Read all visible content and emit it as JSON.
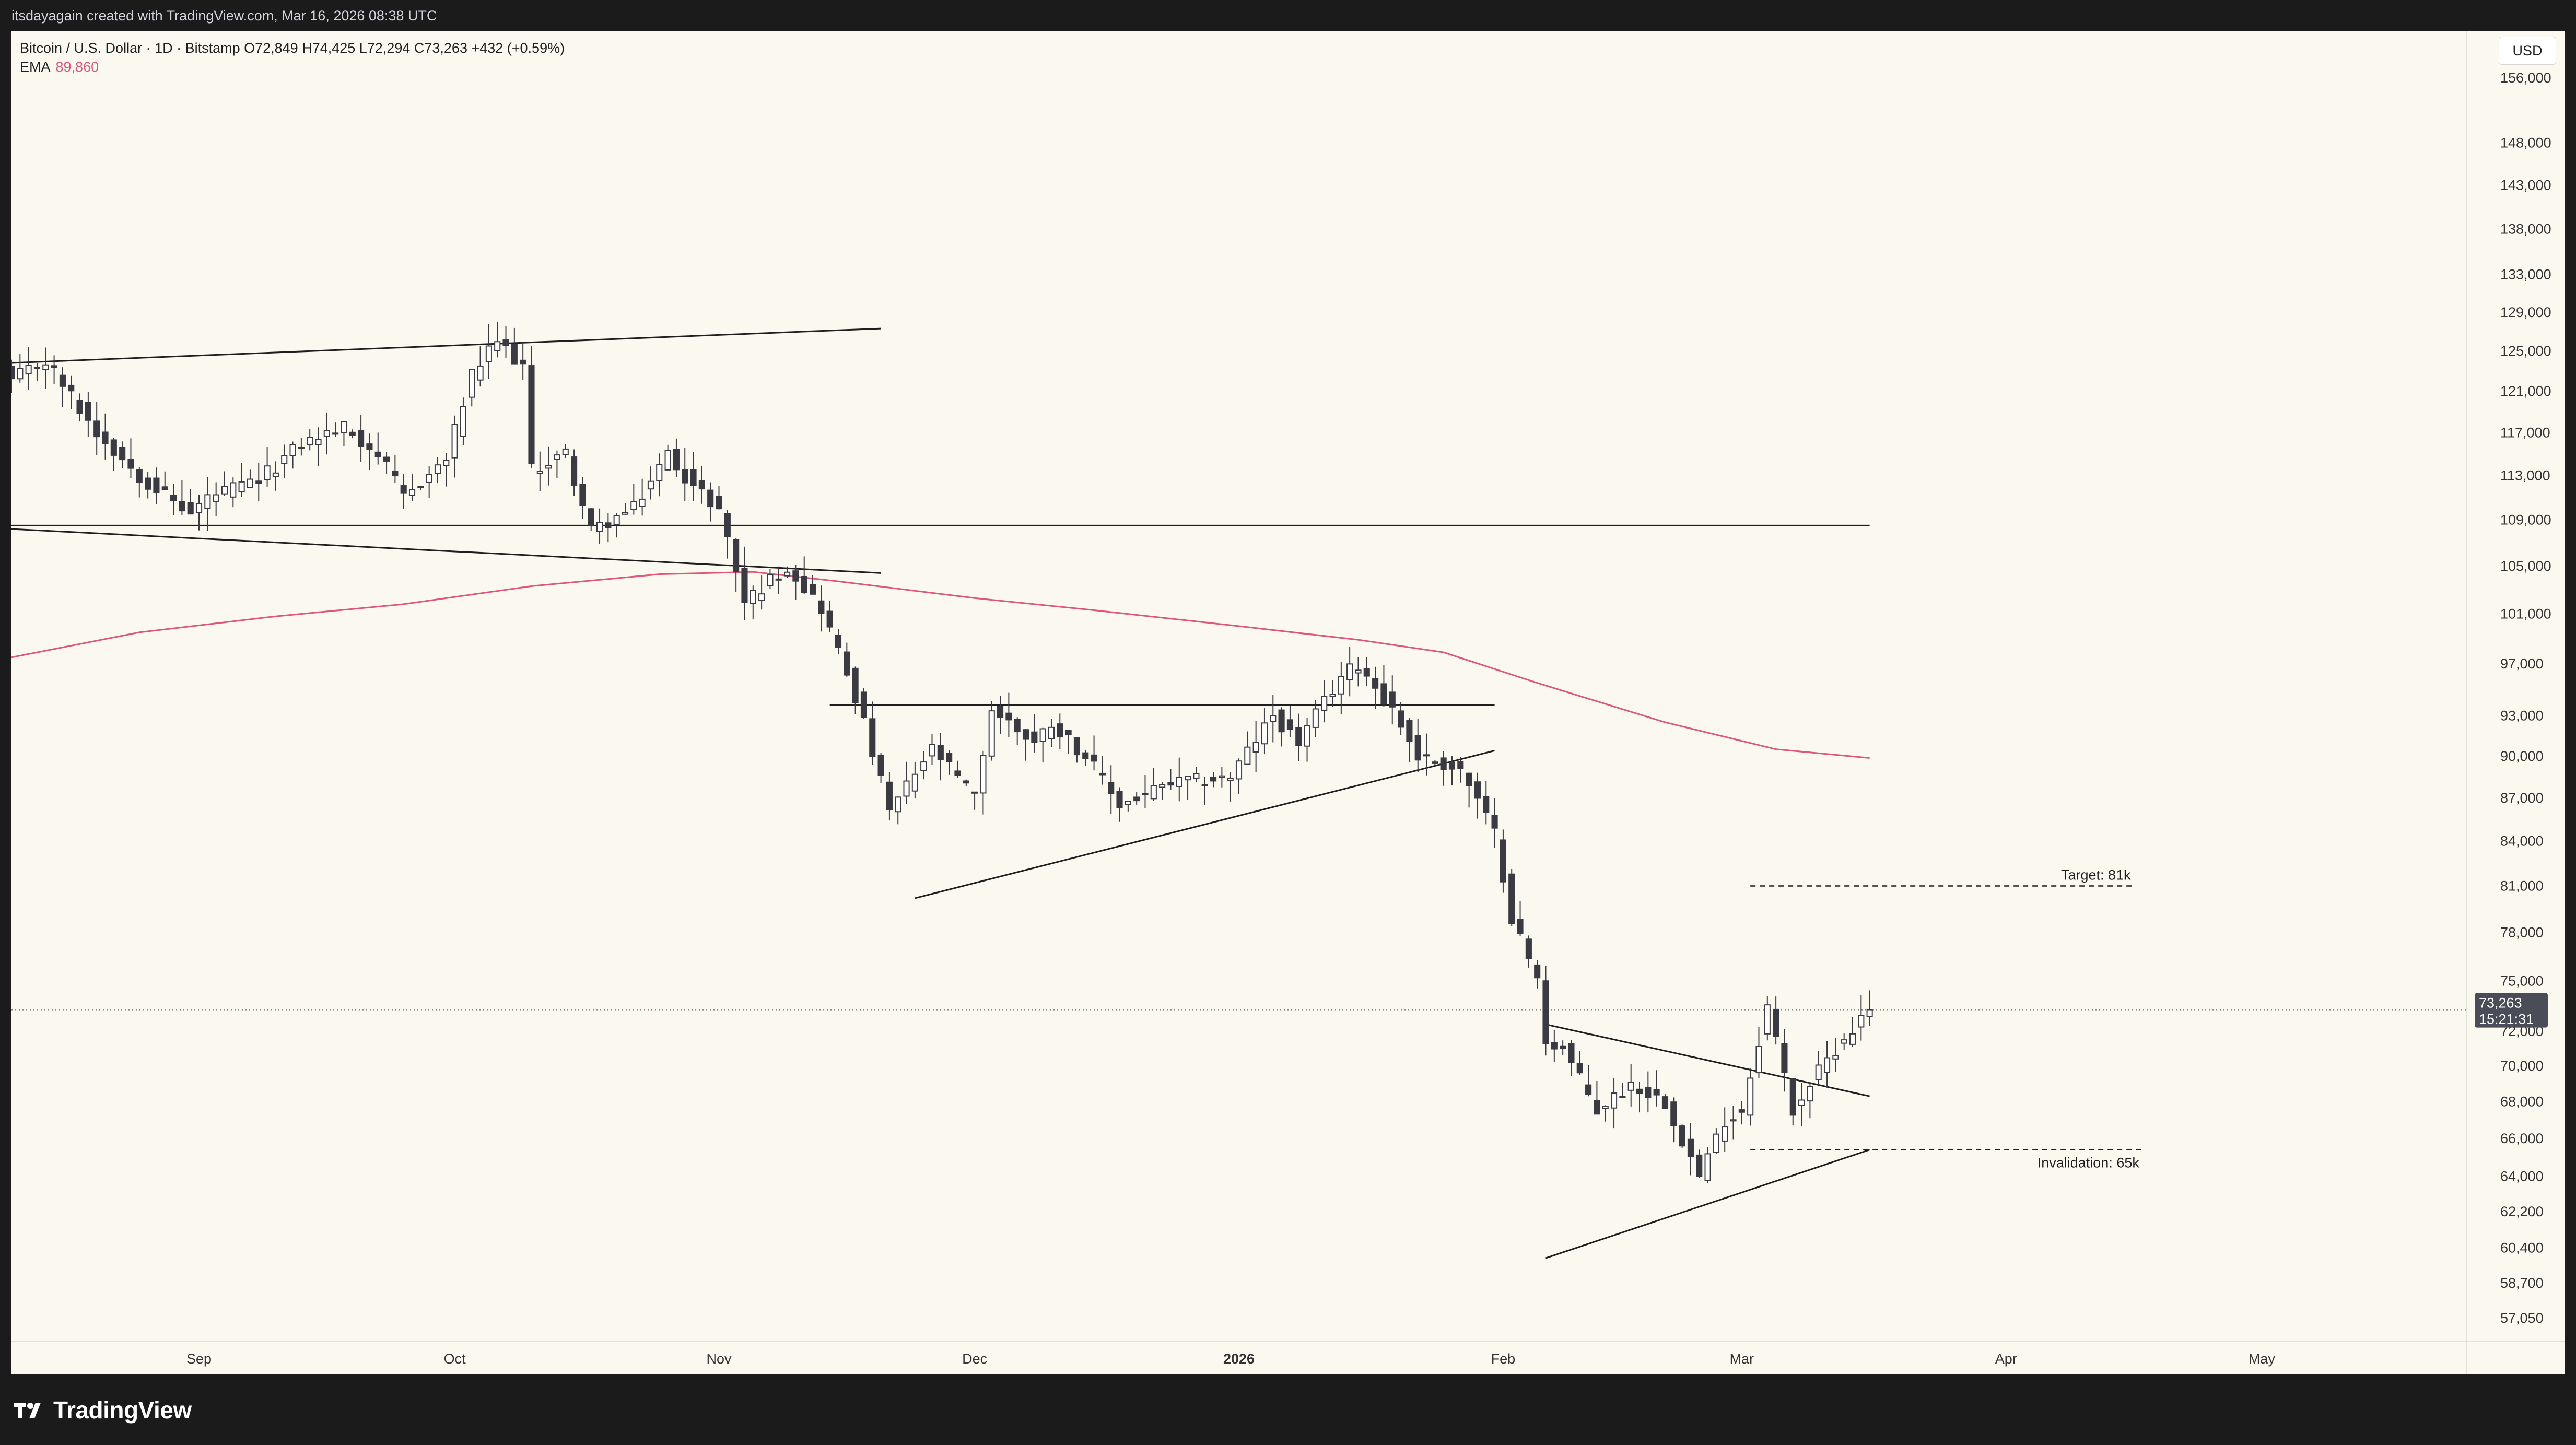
{
  "header": {
    "attribution": "itsdayagain created with TradingView.com, Mar 16, 2026 08:38 UTC"
  },
  "legend": {
    "symbol_line": "Bitcoin / U.S. Dollar · 1D · Bitstamp  O72,849  H74,425  L72,294  C73,263  +432 (+0.59%)",
    "ema_label": "EMA",
    "ema_value": "89,860"
  },
  "currency_button": "USD",
  "price_badge": {
    "price": "73,263",
    "countdown": "15:21:31"
  },
  "footer": {
    "brand": "TradingView"
  },
  "colors": {
    "chart_bg": "#faf8ef",
    "frame_bg": "#1b1b1b",
    "candle_up": "#ffffff",
    "candle_down": "#3a3a42",
    "candle_outline": "#3a3a42",
    "ema": "#e0557a",
    "badge": "#4a4d58"
  },
  "chart_data": {
    "type": "candlestick",
    "symbol": "Bitcoin / U.S. Dollar",
    "interval": "1D",
    "exchange": "Bitstamp",
    "y_scale": "log",
    "ylim": [
      56000,
      162000
    ],
    "y_ticks": [
      "156,000",
      "148,000",
      "143,000",
      "138,000",
      "133,000",
      "129,000",
      "125,000",
      "121,000",
      "117,000",
      "113,000",
      "109,000",
      "105,000",
      "101,000",
      "97,000",
      "93,000",
      "90,000",
      "87,000",
      "84,000",
      "81,000",
      "78,000",
      "75,000",
      "72,000",
      "70,000",
      "68,000",
      "66,000",
      "64,000",
      "62,200",
      "60,400",
      "58,700",
      "57,050"
    ],
    "x_ticks": [
      {
        "label": "Sep",
        "date": "2025-09-01",
        "bold": false
      },
      {
        "label": "Oct",
        "date": "2025-10-01",
        "bold": false
      },
      {
        "label": "Nov",
        "date": "2025-11-01",
        "bold": false
      },
      {
        "label": "Dec",
        "date": "2025-12-01",
        "bold": false
      },
      {
        "label": "2026",
        "date": "2026-01-01",
        "bold": true
      },
      {
        "label": "Feb",
        "date": "2026-02-01",
        "bold": false
      },
      {
        "label": "Mar",
        "date": "2026-03-01",
        "bold": false
      },
      {
        "label": "Apr",
        "date": "2026-04-01",
        "bold": false
      },
      {
        "label": "May",
        "date": "2026-05-01",
        "bold": false
      }
    ],
    "x_range": [
      "2025-08-10",
      "2026-05-25"
    ],
    "ohlc_anchors": [
      [
        "2025-08-10",
        118500,
        122000
      ],
      [
        "2025-08-14",
        121000,
        124000
      ],
      [
        "2025-08-20",
        113500,
        117000
      ],
      [
        "2025-08-25",
        110500,
        113000
      ],
      [
        "2025-08-31",
        108500,
        109500
      ],
      [
        "2025-09-02",
        108800,
        111000
      ],
      [
        "2025-09-08",
        111000,
        112500
      ],
      [
        "2025-09-13",
        115500,
        116000
      ],
      [
        "2025-09-18",
        117000,
        117500
      ],
      [
        "2025-09-22",
        113000,
        115000
      ],
      [
        "2025-09-25",
        109000,
        111000
      ],
      [
        "2025-09-30",
        114000,
        114500
      ],
      [
        "2025-10-03",
        121000,
        122500
      ],
      [
        "2025-10-06",
        124500,
        126000
      ],
      [
        "2025-10-09",
        122000,
        123500
      ],
      [
        "2025-10-10",
        113000,
        113500
      ],
      [
        "2025-10-14",
        113000,
        115000
      ],
      [
        "2025-10-17",
        107000,
        108000
      ],
      [
        "2025-10-22",
        109000,
        110000
      ],
      [
        "2025-10-26",
        114500,
        115000
      ],
      [
        "2025-10-29",
        110500,
        112000
      ],
      [
        "2025-11-01",
        109500,
        110000
      ],
      [
        "2025-11-04",
        100500,
        102000
      ],
      [
        "2025-11-09",
        104500,
        105000
      ],
      [
        "2025-11-13",
        99000,
        101500
      ],
      [
        "2025-11-17",
        92500,
        94500
      ],
      [
        "2025-11-21",
        85500,
        86000
      ],
      [
        "2025-11-26",
        90000,
        90500
      ],
      [
        "2025-12-01",
        86500,
        87000
      ],
      [
        "2025-12-03",
        93000,
        93500
      ],
      [
        "2025-12-08",
        90500,
        91000
      ],
      [
        "2025-12-10",
        92000,
        92500
      ],
      [
        "2025-12-14",
        89000,
        90000
      ],
      [
        "2025-12-18",
        85500,
        86500
      ],
      [
        "2025-12-24",
        87500,
        88000
      ],
      [
        "2025-12-31",
        88000,
        88500
      ],
      [
        "2026-01-05",
        92500,
        93000
      ],
      [
        "2026-01-08",
        90500,
        91000
      ],
      [
        "2026-01-13",
        95000,
        96000
      ],
      [
        "2026-01-15",
        96500,
        97000
      ],
      [
        "2026-01-19",
        93000,
        93500
      ],
      [
        "2026-01-22",
        89500,
        90000
      ],
      [
        "2026-01-27",
        88000,
        89000
      ],
      [
        "2026-01-31",
        84000,
        84500
      ],
      [
        "2026-02-02",
        78500,
        79000
      ],
      [
        "2026-02-05",
        74000,
        75000
      ],
      [
        "2026-02-06",
        71000,
        71500
      ],
      [
        "2026-02-08",
        70500,
        71000
      ],
      [
        "2026-02-12",
        66500,
        67500
      ],
      [
        "2026-02-16",
        68500,
        69000
      ],
      [
        "2026-02-20",
        67500,
        68000
      ],
      [
        "2026-02-24",
        63500,
        64000
      ],
      [
        "2026-02-27",
        66000,
        67000
      ],
      [
        "2026-03-01",
        67000,
        67500
      ],
      [
        "2026-03-04",
        73000,
        73500
      ],
      [
        "2026-03-07",
        67000,
        67500
      ],
      [
        "2026-03-09",
        68500,
        69000
      ],
      [
        "2026-03-12",
        70500,
        71000
      ],
      [
        "2026-03-16",
        72849,
        73263
      ]
    ],
    "last_candle": {
      "date": "2026-03-16",
      "open": 72849,
      "high": 74425,
      "low": 72294,
      "close": 73263,
      "change": 432,
      "change_pct": 0.59
    },
    "ema": {
      "label": "EMA",
      "current": 89860,
      "points": [
        [
          "2025-08-10",
          97500
        ],
        [
          "2025-08-25",
          99500
        ],
        [
          "2025-09-10",
          100800
        ],
        [
          "2025-09-25",
          101800
        ],
        [
          "2025-10-10",
          103300
        ],
        [
          "2025-10-25",
          104300
        ],
        [
          "2025-11-05",
          104500
        ],
        [
          "2025-11-15",
          103700
        ],
        [
          "2025-12-01",
          102300
        ],
        [
          "2025-12-15",
          101300
        ],
        [
          "2026-01-01",
          100000
        ],
        [
          "2026-01-15",
          98900
        ],
        [
          "2026-01-25",
          97900
        ],
        [
          "2026-02-05",
          95500
        ],
        [
          "2026-02-20",
          92500
        ],
        [
          "2026-03-05",
          90500
        ],
        [
          "2026-03-16",
          89860
        ]
      ]
    },
    "trendlines": [
      {
        "kind": "upper-channel",
        "from": [
          "2025-08-10",
          123800
        ],
        "to": [
          "2025-11-20",
          127300
        ]
      },
      {
        "kind": "lower-channel",
        "from": [
          "2025-08-10",
          108200
        ],
        "to": [
          "2025-11-20",
          104400
        ]
      },
      {
        "kind": "horizontal",
        "from": [
          "2025-08-10",
          108500
        ],
        "to": [
          "2026-03-16",
          108500
        ]
      },
      {
        "kind": "horizontal",
        "from": [
          "2025-11-14",
          93800
        ],
        "to": [
          "2026-01-31",
          93800
        ]
      },
      {
        "kind": "rising",
        "from": [
          "2025-11-24",
          80200
        ],
        "to": [
          "2026-01-31",
          90400
        ]
      },
      {
        "kind": "falling",
        "from": [
          "2026-02-06",
          72400
        ],
        "to": [
          "2026-03-16",
          68300
        ]
      },
      {
        "kind": "rising",
        "from": [
          "2026-02-06",
          59900
        ],
        "to": [
          "2026-03-16",
          65400
        ]
      }
    ],
    "annotations": [
      {
        "text": "Target: 81k",
        "level": 81000,
        "from": "2026-03-02",
        "to": "2026-04-16",
        "style": "dashed"
      },
      {
        "text": "Invalidation: 65k",
        "level": 65400,
        "from": "2026-03-02",
        "to": "2026-04-17",
        "style": "dashed"
      }
    ],
    "current_price_line": 73263
  }
}
